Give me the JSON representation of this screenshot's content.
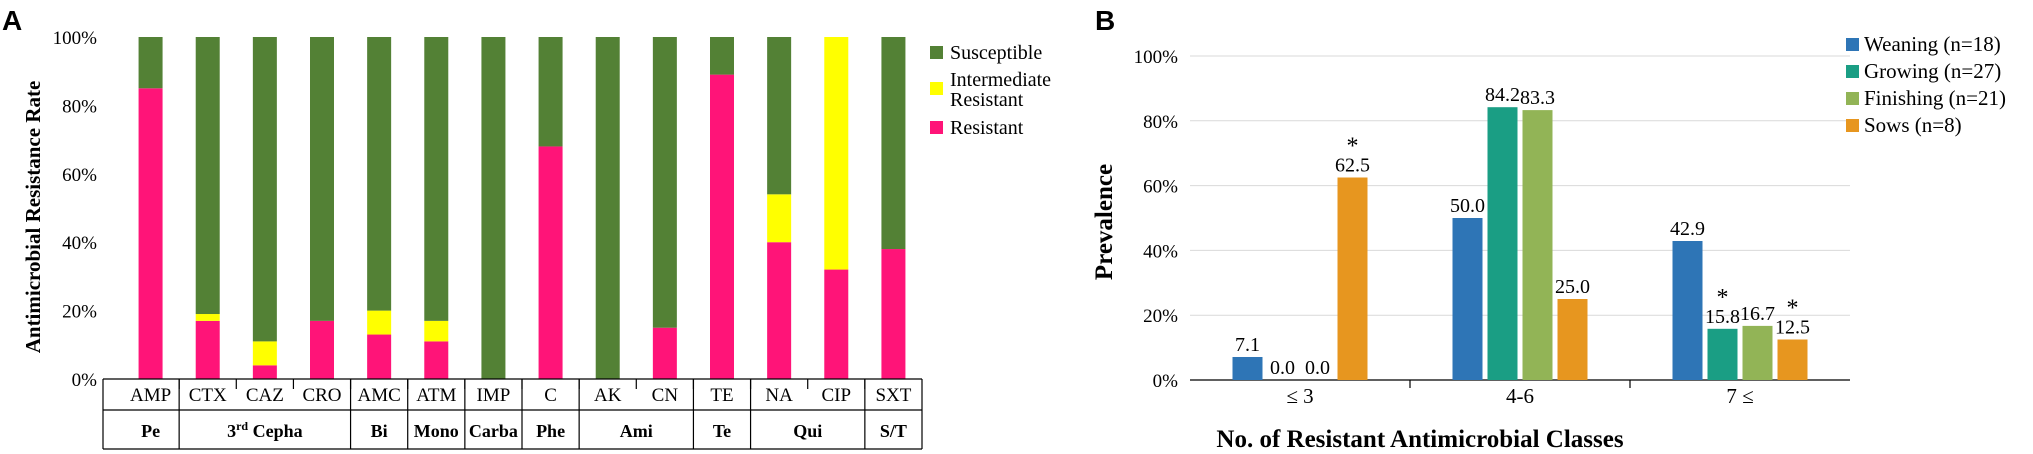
{
  "chart_data": [
    {
      "panel": "A",
      "type": "stacked-bar",
      "title": "",
      "ylabel": "Antimicrobial Resistance Rate",
      "ylim": [
        0,
        100
      ],
      "yticks": [
        "0%",
        "20%",
        "40%",
        "60%",
        "80%",
        "100%"
      ],
      "categories": [
        "AMP",
        "CTX",
        "CAZ",
        "CRO",
        "AMC",
        "ATM",
        "IMP",
        "C",
        "AK",
        "CN",
        "TE",
        "NA",
        "CIP",
        "SXT"
      ],
      "groups": [
        {
          "label": "Pe",
          "span": 1
        },
        {
          "label": "3rd Cepha",
          "label_main": "3",
          "label_sup": "rd",
          "label_rest": " Cepha",
          "span": 3
        },
        {
          "label": "Bi",
          "span": 1
        },
        {
          "label": "Mono",
          "span": 1
        },
        {
          "label": "Carba",
          "span": 1
        },
        {
          "label": "Phe",
          "span": 1
        },
        {
          "label": "Ami",
          "span": 2
        },
        {
          "label": "Te",
          "span": 1
        },
        {
          "label": "Qui",
          "span": 2
        },
        {
          "label": "S/T",
          "span": 1
        }
      ],
      "series": [
        {
          "name": "Resistant",
          "color": "#ff1478",
          "values": [
            85,
            17,
            4,
            17,
            13,
            11,
            0,
            68,
            0,
            15,
            89,
            40,
            32,
            38
          ]
        },
        {
          "name": "Intermediate Resistant",
          "legend_lines": [
            "Intermediate",
            "Resistant"
          ],
          "color": "#ffff00",
          "values": [
            0,
            2,
            7,
            0,
            7,
            6,
            0,
            0,
            0,
            0,
            0,
            14,
            68,
            0
          ]
        },
        {
          "name": "Susceptible",
          "color": "#538135",
          "values": [
            15,
            81,
            89,
            83,
            80,
            83,
            100,
            32,
            100,
            85,
            11,
            46,
            0,
            62
          ]
        }
      ],
      "legend": "right"
    },
    {
      "panel": "B",
      "type": "bar",
      "ylabel": "Prevalence",
      "xlabel": "No. of Resistant Antimicrobial Classes",
      "ylim": [
        0,
        100
      ],
      "yticks": [
        "0%",
        "20%",
        "40%",
        "60%",
        "80%",
        "100%"
      ],
      "categories": [
        "≤ 3",
        "4-6",
        "7 ≤"
      ],
      "series": [
        {
          "name": "Weaning (n=18)",
          "color": "#2e75b6",
          "values": [
            7.1,
            50.0,
            42.9
          ],
          "labels": [
            "7.1",
            "50.0",
            "42.9"
          ],
          "star": [
            false,
            false,
            false
          ]
        },
        {
          "name": "Growing (n=27)",
          "color": "#1a9e84",
          "values": [
            0.0,
            84.2,
            15.8
          ],
          "labels": [
            "0.0",
            "84.2",
            "15.8"
          ],
          "star": [
            false,
            false,
            true
          ]
        },
        {
          "name": "Finishing (n=21)",
          "color": "#92b456",
          "values": [
            0.0,
            83.3,
            16.7
          ],
          "labels": [
            "0.0",
            "83.3",
            "16.7"
          ],
          "star": [
            false,
            false,
            false
          ]
        },
        {
          "name": "Sows (n=8)",
          "color": "#e7961f",
          "values": [
            62.5,
            25.0,
            12.5
          ],
          "labels": [
            "62.5",
            "25.0",
            "12.5"
          ],
          "star": [
            true,
            false,
            true
          ]
        }
      ],
      "star_symbol": "*",
      "legend": "top-right"
    }
  ],
  "panel_labels": {
    "a": "A",
    "b": "B"
  }
}
